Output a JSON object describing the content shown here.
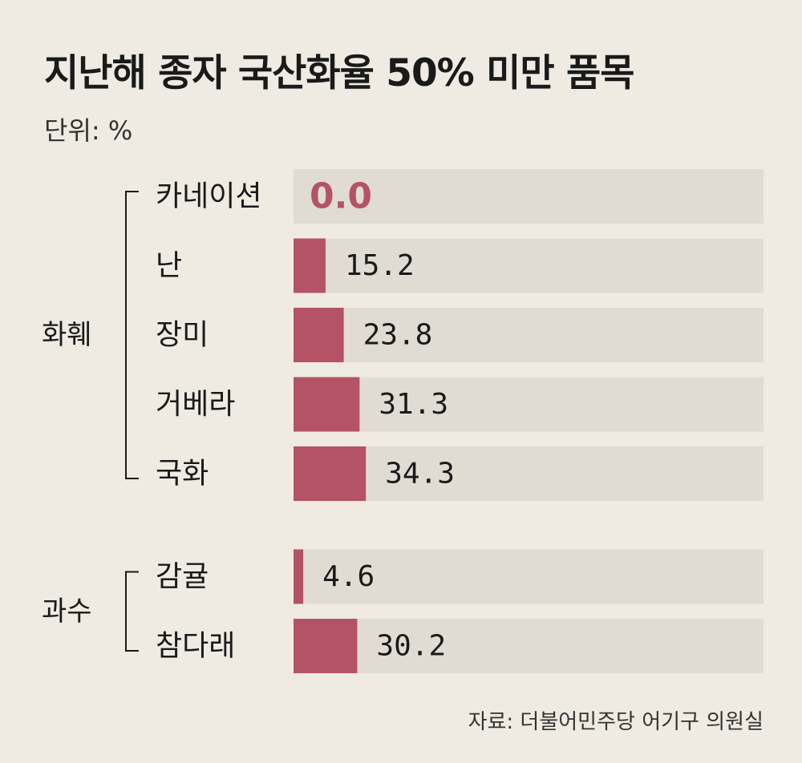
{
  "header": {
    "title": "지난해 종자 국산화율 50% 미만 품목",
    "unit": "단위: %"
  },
  "footer": {
    "source": "자료: 더불어민주당 어기구 의원실"
  },
  "colors": {
    "bar": "#b45365",
    "track": "#e0dcd3",
    "background": "#efebe3",
    "bracket": "#1a1a1a"
  },
  "chart_data": {
    "type": "bar",
    "orientation": "horizontal",
    "title": "지난해 종자 국산화율 50% 미만 품목",
    "unit": "단위: %",
    "xlim": [
      0,
      100
    ],
    "groups": [
      {
        "name": "화훼",
        "categories": [
          "카네이션",
          "난",
          "장미",
          "거베라",
          "국화"
        ],
        "values": [
          0.0,
          15.2,
          23.8,
          31.3,
          34.3
        ],
        "value_labels": [
          "0.0",
          "15.2",
          "23.8",
          "31.3",
          "34.3"
        ]
      },
      {
        "name": "과수",
        "categories": [
          "감귤",
          "참다래"
        ],
        "values": [
          4.6,
          30.2
        ],
        "value_labels": [
          "4.6",
          "30.2"
        ]
      }
    ],
    "source": "자료: 더불어민주당 어기구 의원실"
  }
}
